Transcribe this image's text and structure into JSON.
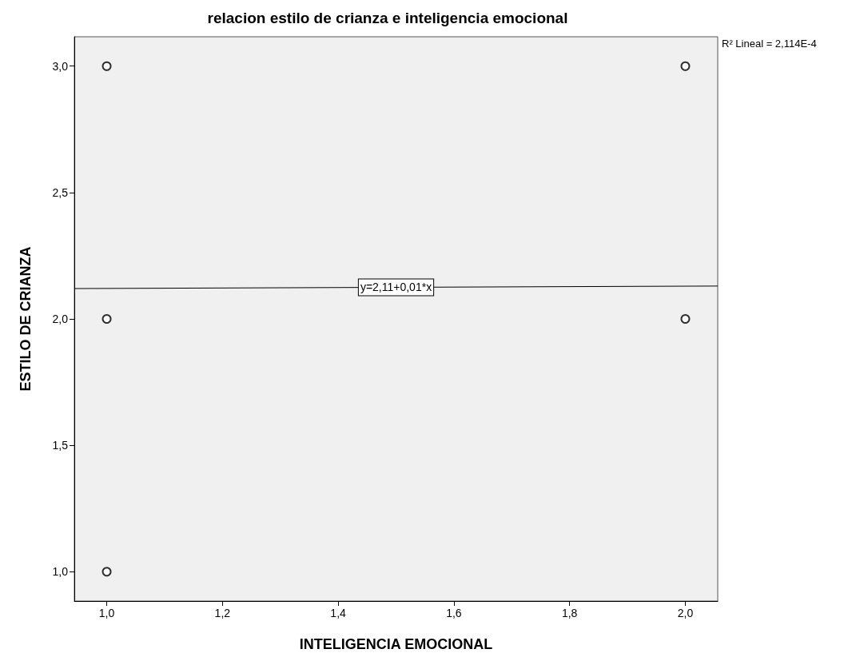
{
  "chart_data": {
    "type": "scatter",
    "title": "relacion estilo de crianza e inteligencia emocional",
    "xlabel": "INTELIGENCIA EMOCIONAL",
    "ylabel": "ESTILO DE CRIANZA",
    "series": [
      {
        "color": "#000000",
        "x": [
          1,
          1,
          1,
          2,
          2
        ],
        "values": [
          3,
          2,
          1,
          3,
          2
        ]
      },
      {
        "type": "line",
        "color": "#000000",
        "x": [
          0.944,
          2.056
        ],
        "values": [
          2.12,
          2.13
        ],
        "marker": "none"
      }
    ],
    "marker": "circle",
    "xlim": [
      0.944,
      2.056
    ],
    "ylim": [
      0.884,
      3.116
    ],
    "xticks": [
      {
        "value": 1,
        "label": "1,0"
      },
      {
        "value": 1.2,
        "label": "1,2"
      },
      {
        "value": 1.4,
        "label": "1,4"
      },
      {
        "value": 1.6,
        "label": "1,6"
      },
      {
        "value": 1.8,
        "label": "1,8"
      },
      {
        "value": 2,
        "label": "2,0"
      }
    ],
    "yticks": [
      {
        "value": 1,
        "label": "1,0"
      },
      {
        "value": 1.5,
        "label": "1,5"
      },
      {
        "value": 2,
        "label": "2,0"
      },
      {
        "value": 2.5,
        "label": "2,5"
      },
      {
        "value": 3,
        "label": "3,0"
      }
    ],
    "annotations": [
      {
        "text": "y=2,11+0,01*x",
        "x": 1.5,
        "y": 2.125
      },
      "R² Lineal = 2,114E-4"
    ],
    "grid": false
  }
}
